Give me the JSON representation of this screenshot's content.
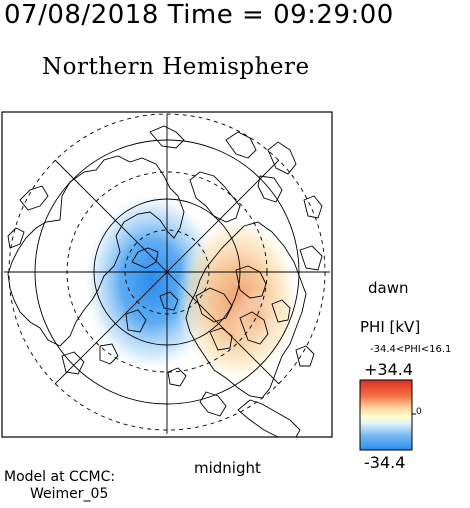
{
  "header": {
    "timestamp": "07/08/2018 Time = 09:29:00",
    "hemisphere_title": "Northern Hemisphere"
  },
  "map": {
    "orientation_labels": {
      "right": "dawn",
      "bottom": "midnight"
    }
  },
  "colorbar": {
    "title": "PHI [kV]",
    "range_text": "-34.4<PHI<16.1",
    "max_label": "+34.4",
    "min_label": "-34.4",
    "zero_label": "0",
    "colors": {
      "positive": "#d73027",
      "neutral": "#ffffcc",
      "negative": "#2b8cee"
    }
  },
  "credit": {
    "line1": "Model at CCMC:",
    "line2": "Weimer_05"
  }
}
